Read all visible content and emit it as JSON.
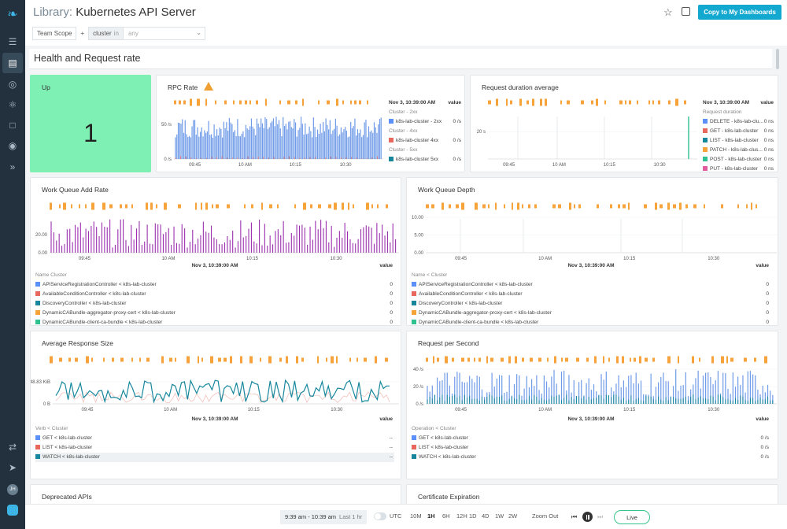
{
  "app": {
    "title_prefix": "Library:",
    "title": "Kubernetes API Server",
    "copy_label": "Copy to My Dashboards",
    "scope": {
      "team_scope": "Team Scope",
      "plus": "+",
      "label": "cluster",
      "op": "in",
      "value_placeholder": "any"
    }
  },
  "sidebar": {
    "items": [
      "layers-icon",
      "dashboards-icon",
      "explore-icon",
      "alerts-icon",
      "events-icon",
      "capture-icon",
      "expand-icon"
    ],
    "bottom": [
      "integrations-icon",
      "rocket-icon"
    ],
    "user_initials": "JH"
  },
  "section": {
    "title": "Health and Request rate"
  },
  "panels": {
    "up": {
      "title": "Up",
      "value": "1"
    },
    "rpc": {
      "title": "RPC Rate",
      "y_ticks": [
        "50 /s",
        "0 /s"
      ],
      "x_ticks": [
        "09:45",
        "10 AM",
        "10:15",
        "10:30"
      ],
      "legend": {
        "time": "Nov 3, 10:39:00 AM",
        "value_head": "value",
        "groups": [
          {
            "name": "Cluster - 2xx",
            "rows": [
              {
                "label": "k8s-lab-cluster - 2xx",
                "value": "0 /s",
                "color": "#5b8ff9"
              }
            ]
          },
          {
            "name": "Cluster - 4xx",
            "rows": [
              {
                "label": "k8s-lab-cluster 4xx",
                "value": "0 /s",
                "color": "#e8685e"
              }
            ]
          },
          {
            "name": "Cluster - 5xx",
            "rows": [
              {
                "label": "k8s-lab-cluster 5xx",
                "value": "0 /s",
                "color": "#16879c"
              }
            ]
          }
        ]
      }
    },
    "req_duration": {
      "title": "Request duration average",
      "y_ticks": [
        "20 s"
      ],
      "x_ticks": [
        "09:45",
        "10 AM",
        "10:15",
        "10:30"
      ],
      "legend": {
        "time": "Nov 3, 10:39:00 AM",
        "value_head": "value",
        "sub": "Request duration",
        "rows": [
          {
            "label": "DELETE - k8s-lab-clu...",
            "value": "0 ns",
            "color": "#5b8ff9"
          },
          {
            "label": "GET - k8s-lab-cluster",
            "value": "0 ns",
            "color": "#e8685e"
          },
          {
            "label": "LIST - k8s-lab-cluster",
            "value": "0 ns",
            "color": "#16879c"
          },
          {
            "label": "PATCH - k8s-lab-clus...",
            "value": "0 ns",
            "color": "#f5a33a"
          },
          {
            "label": "POST - k8s-lab-cluster",
            "value": "0 ns",
            "color": "#2fc28e"
          },
          {
            "label": "PUT - k8s-lab-cluster",
            "value": "0 ns",
            "color": "#e05c9f"
          }
        ]
      }
    },
    "wq_add": {
      "title": "Work Queue Add Rate",
      "y_ticks": [
        "20.00",
        "0.00"
      ],
      "x_ticks": [
        "09:45",
        "10 AM",
        "10:15",
        "10:30"
      ],
      "legend": {
        "time": "Nov 3, 10:39:00 AM",
        "value_head": "value",
        "sub": "Name Cluster",
        "rows": [
          {
            "label": "APIServiceRegistrationController < k8s-lab-cluster",
            "value": "0",
            "color": "#5b8ff9"
          },
          {
            "label": "AvailableConditionController < k8s-lab-cluster",
            "value": "0",
            "color": "#e8685e"
          },
          {
            "label": "DiscoveryController < k8s-lab-cluster",
            "value": "0",
            "color": "#16879c"
          },
          {
            "label": "DynamicCABundle-aggregator-proxy-cert < k8s-lab-cluster",
            "value": "0",
            "color": "#f5a33a"
          },
          {
            "label": "DynamicCABundle-client-ca-bundle < k8s-lab-cluster",
            "value": "0",
            "color": "#2fc28e"
          }
        ]
      }
    },
    "wq_depth": {
      "title": "Work Queue Depth",
      "y_ticks": [
        "10.00",
        "5.00",
        "0.00"
      ],
      "x_ticks": [
        "09:45",
        "10 AM",
        "10:15",
        "10:30"
      ],
      "legend": {
        "time": "Nov 3, 10:39:00 AM",
        "value_head": "value",
        "sub": "Name < Cluster",
        "rows": [
          {
            "label": "APIServiceRegistrationController < k8s-lab-cluster",
            "value": "0",
            "color": "#5b8ff9"
          },
          {
            "label": "AvailableConditionController < k8s-lab-cluster",
            "value": "0",
            "color": "#e8685e"
          },
          {
            "label": "DiscoveryController < k8s-lab-cluster",
            "value": "0",
            "color": "#16879c"
          },
          {
            "label": "DynamicCABundle-aggregator-proxy-cert < k8s-lab-cluster",
            "value": "0",
            "color": "#f5a33a"
          },
          {
            "label": "DynamicCABundle-client-ca-bundle < k8s-lab-cluster",
            "value": "0",
            "color": "#2fc28e"
          }
        ]
      }
    },
    "avg_resp": {
      "title": "Average Response Size",
      "y_ticks": [
        "48.83 KiB",
        "0 B"
      ],
      "x_ticks": [
        "09:45",
        "10 AM",
        "10:15",
        "10:30"
      ],
      "legend": {
        "time": "Nov 3, 10:39:00 AM",
        "value_head": "value",
        "sub": "Verb < Cluster",
        "rows": [
          {
            "label": "GET < k8s-lab-cluster",
            "value": "--",
            "color": "#5b8ff9"
          },
          {
            "label": "LIST < k8s-lab-cluster",
            "value": "--",
            "color": "#e8685e"
          },
          {
            "label": "WATCH < k8s-lab-cluster",
            "value": "--",
            "color": "#16879c"
          }
        ]
      }
    },
    "rps": {
      "title": "Request per Second",
      "y_ticks": [
        "40 /s",
        "20 /s",
        "0 /s"
      ],
      "x_ticks": [
        "09:45",
        "10 AM",
        "10:15",
        "10:30"
      ],
      "legend": {
        "time": "Nov 3, 10:39:00 AM",
        "value_head": "value",
        "sub": "Operation < Cluster",
        "rows": [
          {
            "label": "GET < k8s-lab-cluster",
            "value": "0 /s",
            "color": "#5b8ff9"
          },
          {
            "label": "LIST < k8s-lab-cluster",
            "value": "0 /s",
            "color": "#e8685e"
          },
          {
            "label": "WATCH < k8s-lab-cluster",
            "value": "0 /s",
            "color": "#16879c"
          }
        ]
      }
    },
    "deprecated": {
      "title": "Deprecated APIs"
    },
    "cert": {
      "title": "Certificate Expiration"
    }
  },
  "timebar": {
    "range": "9:39 am - 10:39 am",
    "range_sub": "Last 1 hr",
    "utc": "UTC",
    "options": [
      "10M",
      "1H",
      "6H",
      "12H",
      "1D",
      "4D",
      "1W",
      "2W"
    ],
    "selected": "1H",
    "zoom_out": "Zoom Out",
    "live": "Live"
  }
}
